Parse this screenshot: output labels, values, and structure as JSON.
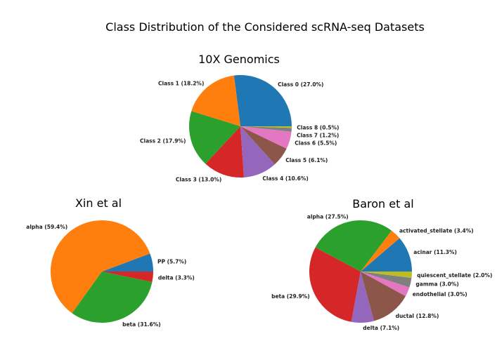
{
  "title": "Class Distribution of the Considered scRNA-seq Datasets",
  "colors": [
    "#1f77b4",
    "#ff7f0e",
    "#2ca02c",
    "#d62728",
    "#9467bd",
    "#8c564b",
    "#e377c2",
    "#7f7f7f",
    "#bcbd22"
  ],
  "chart_data": [
    {
      "type": "pie",
      "title": "10X Genomics",
      "slices": [
        {
          "label": "Class 0 (27.0%)",
          "value": 27.0,
          "color": "#1f77b4"
        },
        {
          "label": "Class 1 (18.2%)",
          "value": 18.2,
          "color": "#ff7f0e"
        },
        {
          "label": "Class 2 (17.9%)",
          "value": 17.9,
          "color": "#2ca02c"
        },
        {
          "label": "Class 3 (13.0%)",
          "value": 13.0,
          "color": "#d62728"
        },
        {
          "label": "Class 4 (10.6%)",
          "value": 10.6,
          "color": "#9467bd"
        },
        {
          "label": "Class 5 (6.1%)",
          "value": 6.1,
          "color": "#8c564b"
        },
        {
          "label": "Class 6 (5.5%)",
          "value": 5.5,
          "color": "#e377c2"
        },
        {
          "label": "Class 7 (1.2%)",
          "value": 1.2,
          "color": "#7f7f7f"
        },
        {
          "label": "Class 8 (0.5%)",
          "value": 0.5,
          "color": "#bcbd22"
        }
      ]
    },
    {
      "type": "pie",
      "title": "Xin et al",
      "slices": [
        {
          "label": "PP (5.7%)",
          "value": 5.7,
          "color": "#1f77b4"
        },
        {
          "label": "alpha (59.4%)",
          "value": 59.4,
          "color": "#ff7f0e"
        },
        {
          "label": "beta (31.6%)",
          "value": 31.6,
          "color": "#2ca02c"
        },
        {
          "label": "delta (3.3%)",
          "value": 3.3,
          "color": "#d62728"
        }
      ]
    },
    {
      "type": "pie",
      "title": "Baron et al",
      "slices": [
        {
          "label": "acinar (11.3%)",
          "value": 11.3,
          "color": "#1f77b4"
        },
        {
          "label": "activated_stellate (3.4%)",
          "value": 3.4,
          "color": "#ff7f0e"
        },
        {
          "label": "alpha (27.5%)",
          "value": 27.5,
          "color": "#2ca02c"
        },
        {
          "label": "beta (29.9%)",
          "value": 29.9,
          "color": "#d62728"
        },
        {
          "label": "delta (7.1%)",
          "value": 7.1,
          "color": "#9467bd"
        },
        {
          "label": "ductal (12.8%)",
          "value": 12.8,
          "color": "#8c564b"
        },
        {
          "label": "endothelial (3.0%)",
          "value": 3.0,
          "color": "#e377c2"
        },
        {
          "label": "gamma (3.0%)",
          "value": 3.0,
          "color": "#7f7f7f"
        },
        {
          "label": "quiescent_stellate (2.0%)",
          "value": 2.0,
          "color": "#bcbd22"
        }
      ]
    }
  ]
}
